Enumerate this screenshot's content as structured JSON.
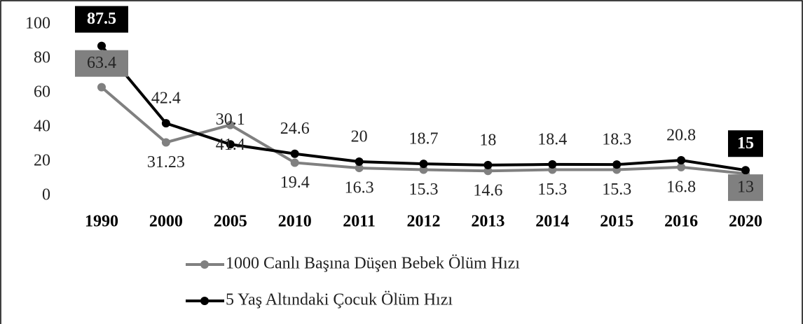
{
  "chart_data": {
    "type": "line",
    "categories": [
      "1990",
      "2000",
      "2005",
      "2010",
      "2011",
      "2012",
      "2013",
      "2014",
      "2015",
      "2016",
      "2020"
    ],
    "series": [
      {
        "name": "1000 Canlı Başına Düşen Bebek Ölüm Hızı",
        "color": "#808080",
        "values": [
          63.4,
          31.23,
          41.4,
          19.4,
          16.3,
          15.3,
          14.6,
          15.3,
          15.3,
          16.8,
          13
        ]
      },
      {
        "name": "5 Yaş Altındaki Çocuk Ölüm Hızı",
        "color": "#000000",
        "values": [
          87.5,
          42.4,
          30.1,
          24.6,
          20,
          18.7,
          18,
          18.4,
          18.3,
          20.8,
          15
        ]
      }
    ],
    "ylim": [
      0,
      100
    ],
    "yticks": [
      0,
      20,
      40,
      60,
      80,
      100
    ],
    "grid": false
  }
}
